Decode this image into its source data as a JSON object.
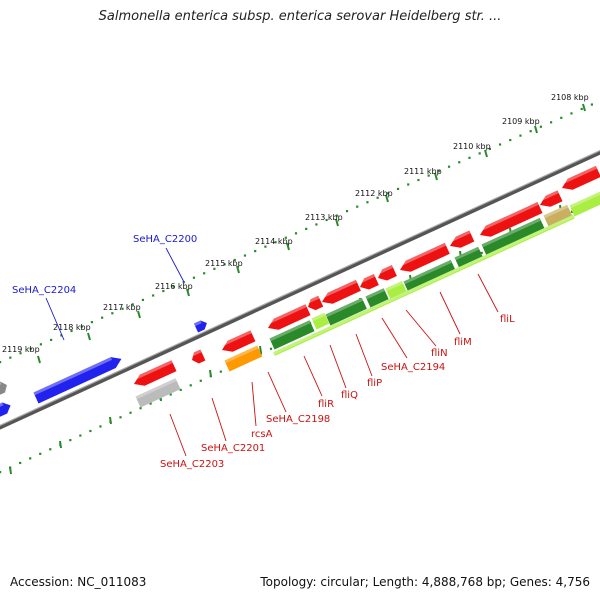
{
  "title": "Salmonella enterica subsp. enterica serovar Heidelberg str. ...",
  "footer": {
    "accession": "Accession: NC_011083",
    "summary": "Topology: circular; Length: 4,888,768 bp; Genes: 4,756"
  },
  "ruler": {
    "unit": "kbp",
    "ticks": [
      "2108 kbp",
      "2109 kbp",
      "2110 kbp",
      "2111 kbp",
      "2112 kbp",
      "2113 kbp",
      "2114 kbp",
      "2115 kbp",
      "2116 kbp",
      "2117 kbp",
      "2118 kbp",
      "2119 kbp"
    ]
  },
  "colors": {
    "forward_gene": "#2222ee",
    "reverse_gene": "#ee1111",
    "orange_gene": "#ff9900",
    "grey_gene": "#bbbbbb",
    "dark_green": "#2a8a2a",
    "light_green": "#aaee44",
    "backbone": "#777777",
    "label_blue": "#1a1acc",
    "label_red": "#cc1111",
    "ruler_green": "#2a8a2a"
  },
  "gene_labels_forward": [
    "SeHA_C2200",
    "SeHA_C2204"
  ],
  "gene_labels_reverse": [
    "fliL",
    "fliM",
    "fliN",
    "SeHA_C2194",
    "fliP",
    "fliQ",
    "fliR",
    "SeHA_C2198",
    "rcsA",
    "SeHA_C2201",
    "SeHA_C2203"
  ]
}
